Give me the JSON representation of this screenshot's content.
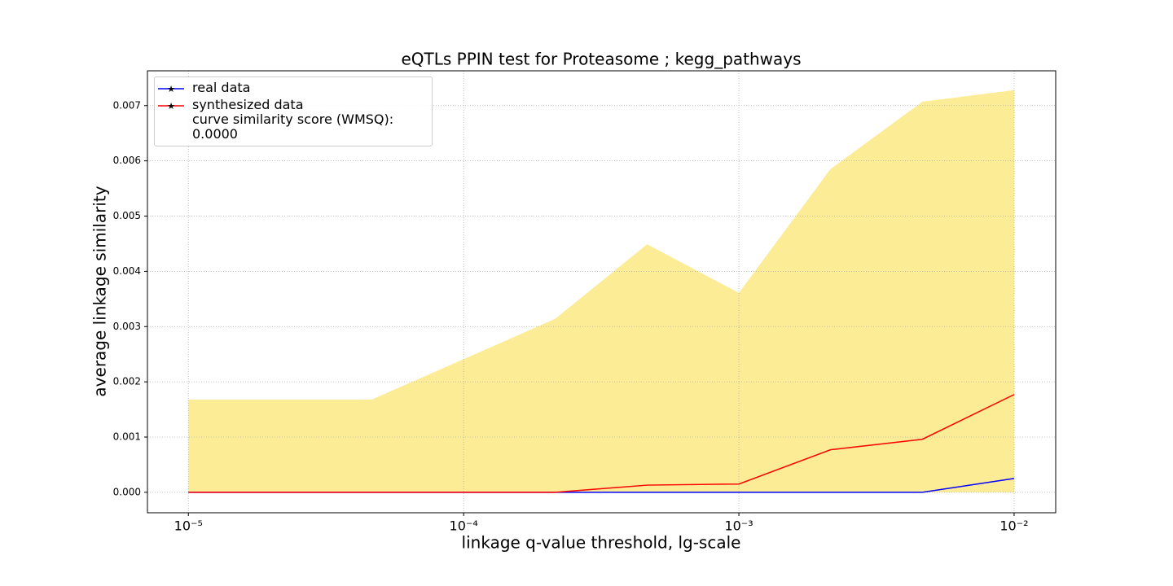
{
  "chart_data": {
    "type": "line",
    "title": "eQTLs PPIN test for Proteasome ; kegg_pathways",
    "xlabel": "linkage q-value threshold, lg-scale",
    "ylabel": "average linkage similarity",
    "xscale": "log",
    "x": [
      1e-05,
      2.15e-05,
      4.64e-05,
      0.0001,
      0.000215,
      0.000464,
      0.001,
      0.00215,
      0.00464,
      0.01
    ],
    "series": [
      {
        "name": "real data",
        "color": "#0000ff",
        "values": [
          0,
          0,
          0,
          0,
          0,
          0,
          0,
          0,
          0,
          0.00025
        ]
      },
      {
        "name": "synthesized data\ncurve similarity score (WMSQ): 0.0000",
        "color": "#ff0000",
        "values": [
          0,
          0,
          0,
          0,
          0,
          0.00013,
          0.00015,
          0.00077,
          0.00096,
          0.00177
        ]
      }
    ],
    "band": {
      "color": "#fdec96",
      "lower": [
        0,
        0,
        0,
        0,
        0,
        0,
        0,
        0,
        0,
        0
      ],
      "upper": [
        0.00168,
        0.00168,
        0.00168,
        0.00241,
        0.00314,
        0.00449,
        0.00361,
        0.00585,
        0.00707,
        0.00728
      ]
    },
    "xlim": [
      7.1e-06,
      0.01416
    ],
    "ylim": [
      -0.00037,
      0.00763
    ],
    "xticks": [
      {
        "value": 1e-05,
        "label": "10⁻⁵"
      },
      {
        "value": 0.0001,
        "label": "10⁻⁴"
      },
      {
        "value": 0.001,
        "label": "10⁻³"
      },
      {
        "value": 0.01,
        "label": "10⁻²"
      }
    ],
    "yticks": [
      {
        "value": 0,
        "label": "0.000"
      },
      {
        "value": 0.001,
        "label": "0.001"
      },
      {
        "value": 0.002,
        "label": "0.002"
      },
      {
        "value": 0.003,
        "label": "0.003"
      },
      {
        "value": 0.004,
        "label": "0.004"
      },
      {
        "value": 0.005,
        "label": "0.005"
      },
      {
        "value": 0.006,
        "label": "0.006"
      },
      {
        "value": 0.007,
        "label": "0.007"
      }
    ],
    "grid": true,
    "legend": "upper left"
  }
}
